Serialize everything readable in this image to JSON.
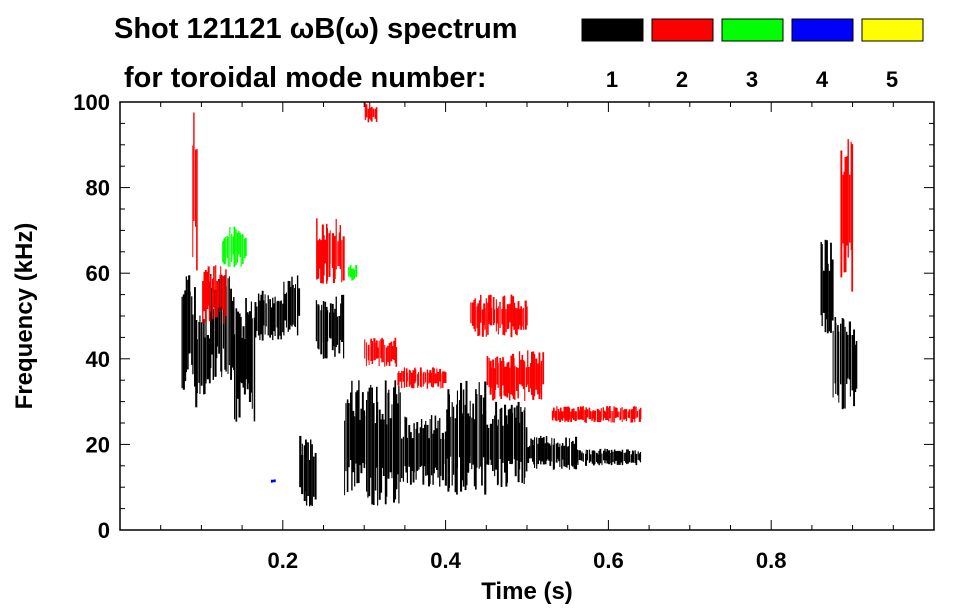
{
  "chart_data": {
    "type": "spectrogram",
    "title": "Shot 121121 ωB(ω) spectrum",
    "subtitle": "for toroidal mode number:",
    "xlabel": "Time (s)",
    "ylabel": "Frequency (kHz)",
    "xlim": [
      0.0,
      1.0
    ],
    "ylim": [
      0,
      100
    ],
    "x_ticks": [
      0.2,
      0.4,
      0.6,
      0.8
    ],
    "x_tick_labels": [
      "0.2",
      "0.4",
      "0.6",
      "0.8"
    ],
    "y_ticks": [
      0,
      20,
      40,
      60,
      80,
      100
    ],
    "y_tick_labels": [
      "0",
      "20",
      "40",
      "60",
      "80",
      "100"
    ],
    "legend_placement": "top-right",
    "series": [
      {
        "name": "1",
        "color": "#000000",
        "blobs": [
          {
            "t0": 0.075,
            "t1": 0.092,
            "f0": 32,
            "f1": 60
          },
          {
            "t0": 0.092,
            "t1": 0.11,
            "f0": 28,
            "f1": 52
          },
          {
            "t0": 0.11,
            "t1": 0.14,
            "f0": 35,
            "f1": 60
          },
          {
            "t0": 0.14,
            "t1": 0.165,
            "f0": 25,
            "f1": 55
          },
          {
            "t0": 0.165,
            "t1": 0.2,
            "f0": 44,
            "f1": 56
          },
          {
            "t0": 0.2,
            "t1": 0.22,
            "f0": 45,
            "f1": 60
          },
          {
            "t0": 0.22,
            "t1": 0.24,
            "f0": 5,
            "f1": 22
          },
          {
            "t0": 0.24,
            "t1": 0.275,
            "f0": 40,
            "f1": 55
          },
          {
            "t0": 0.275,
            "t1": 0.3,
            "f0": 8,
            "f1": 35
          },
          {
            "t0": 0.3,
            "t1": 0.345,
            "f0": 5,
            "f1": 35
          },
          {
            "t0": 0.345,
            "t1": 0.4,
            "f0": 10,
            "f1": 27
          },
          {
            "t0": 0.4,
            "t1": 0.45,
            "f0": 8,
            "f1": 35
          },
          {
            "t0": 0.45,
            "t1": 0.5,
            "f0": 10,
            "f1": 30
          },
          {
            "t0": 0.5,
            "t1": 0.56,
            "f0": 14,
            "f1": 22
          },
          {
            "t0": 0.56,
            "t1": 0.64,
            "f0": 15,
            "f1": 19
          },
          {
            "t0": 0.86,
            "t1": 0.875,
            "f0": 45,
            "f1": 68
          },
          {
            "t0": 0.875,
            "t1": 0.905,
            "f0": 28,
            "f1": 50
          }
        ]
      },
      {
        "name": "2",
        "color": "#ff0000",
        "blobs": [
          {
            "t0": 0.088,
            "t1": 0.095,
            "f0": 60,
            "f1": 100
          },
          {
            "t0": 0.1,
            "t1": 0.13,
            "f0": 48,
            "f1": 62
          },
          {
            "t0": 0.24,
            "t1": 0.275,
            "f0": 57,
            "f1": 73
          },
          {
            "t0": 0.3,
            "t1": 0.315,
            "f0": 95,
            "f1": 100
          },
          {
            "t0": 0.3,
            "t1": 0.34,
            "f0": 38,
            "f1": 45
          },
          {
            "t0": 0.34,
            "t1": 0.4,
            "f0": 33,
            "f1": 38
          },
          {
            "t0": 0.43,
            "t1": 0.5,
            "f0": 45,
            "f1": 55
          },
          {
            "t0": 0.45,
            "t1": 0.52,
            "f0": 30,
            "f1": 42
          },
          {
            "t0": 0.53,
            "t1": 0.64,
            "f0": 25,
            "f1": 29
          },
          {
            "t0": 0.885,
            "t1": 0.9,
            "f0": 55,
            "f1": 95
          }
        ]
      },
      {
        "name": "3",
        "color": "#00ff00",
        "blobs": [
          {
            "t0": 0.125,
            "t1": 0.155,
            "f0": 61,
            "f1": 71
          },
          {
            "t0": 0.28,
            "t1": 0.29,
            "f0": 58,
            "f1": 62
          }
        ]
      },
      {
        "name": "4",
        "color": "#0000ff",
        "blobs": [
          {
            "t0": 0.185,
            "t1": 0.19,
            "f0": 11,
            "f1": 12
          }
        ]
      },
      {
        "name": "5",
        "color": "#ffff00",
        "blobs": []
      }
    ]
  }
}
